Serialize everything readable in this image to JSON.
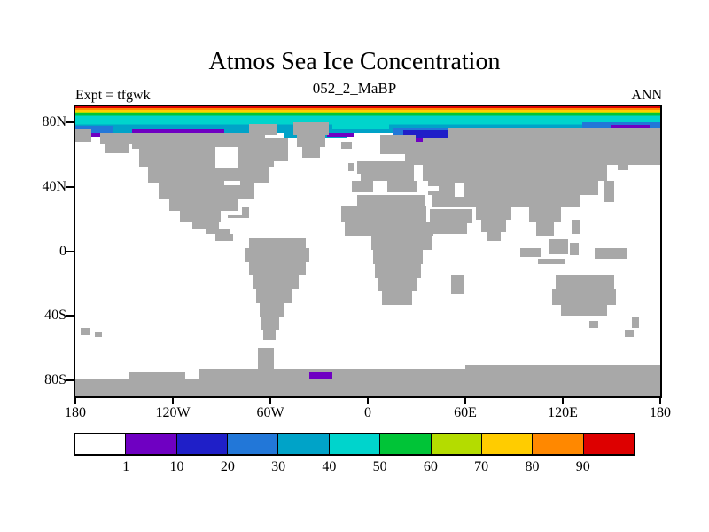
{
  "figure": {
    "title": "Atmos Sea Ice Concentration",
    "subtitle": "052_2_MaBP",
    "experiment_label": "Expt = tfgwk",
    "season_label": "ANN"
  },
  "axes": {
    "x_tick_labels": [
      "180",
      "120W",
      "60W",
      "0",
      "60E",
      "120E",
      "180"
    ],
    "y_tick_labels": [
      "80N",
      "40N",
      "0",
      "40S",
      "80S"
    ],
    "y_tick_latitudes": [
      80,
      40,
      0,
      -40,
      -80
    ]
  },
  "colorbar": {
    "tick_labels": [
      "1",
      "10",
      "20",
      "30",
      "40",
      "50",
      "60",
      "70",
      "80",
      "90"
    ],
    "colors": [
      "#ffffff",
      "#6f00c2",
      "#1f1fc8",
      "#2277d8",
      "#00a3c8",
      "#00d4cc",
      "#00c437",
      "#b4dc00",
      "#ffcc00",
      "#ff8800",
      "#dd0000"
    ]
  },
  "map": {
    "land_color": "#a8a8a8",
    "ocean_color": "#ffffff",
    "frame_color": "#000000"
  },
  "chart_data": {
    "type": "heatmap",
    "title": "Atmos Sea Ice Concentration",
    "subtitle": "052_2_MaBP",
    "experiment": "tfgwk",
    "season": "ANN",
    "projection": "equirectangular latitude-longitude world map",
    "x_axis": {
      "tick_labels": [
        "180",
        "120W",
        "60W",
        "0",
        "60E",
        "120E",
        "180"
      ],
      "range_deg": [
        -180,
        180
      ]
    },
    "y_axis": {
      "tick_labels": [
        "80N",
        "40N",
        "0",
        "40S",
        "80S"
      ],
      "range_deg": [
        -90,
        90
      ]
    },
    "levels": [
      1,
      10,
      20,
      30,
      40,
      50,
      60,
      70,
      80,
      90
    ],
    "palette": [
      "#ffffff",
      "#6f00c2",
      "#1f1fc8",
      "#2277d8",
      "#00a3c8",
      "#00d4cc",
      "#00c437",
      "#b4dc00",
      "#ffcc00",
      "#ff8800",
      "#dd0000"
    ],
    "legend_position": "horizontal bar below map",
    "grid": false,
    "values_summary": {
      "arctic": "Concentration decreases southward from >90 (red/orange/yellow thin zonal bands at ~88-90N), green ~87N, light-cyan 40-50 band ~82-87N, teal 30-40 band ~76-82N, blue 10-30 pocket over the Barents/Kara seas dipping to ~70N, violet 1-10 fringe along arctic coastlines near 70N (Alaska/Canada, Greenland, Siberia, Bering)",
      "antarctic": "Small violet 1-10 patch at the Antarctic coast near 30-40W around 78S; remaining Southern Ocean open water (<1, white)",
      "mid_latitudes": "No sea ice (white, below lowest contour level 1) between roughly 68N and 70S",
      "land": "Land cells masked in gray"
    }
  }
}
